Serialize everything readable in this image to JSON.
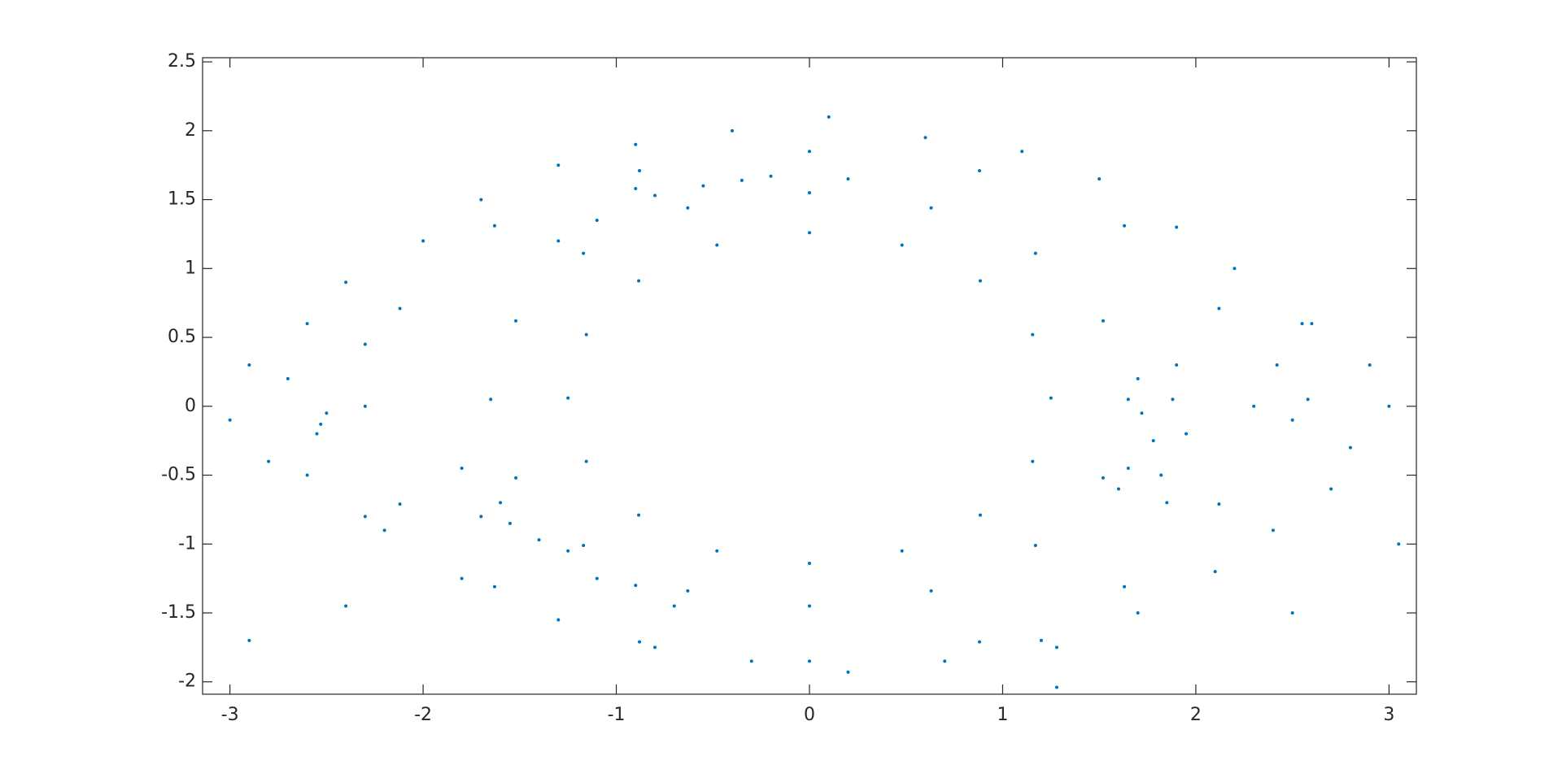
{
  "chart_data": {
    "type": "scatter",
    "color": "#0072bd",
    "xlim": [
      -3.1416,
      3.1416
    ],
    "ylim": [
      -2.09,
      2.53
    ],
    "xticks": [
      -3,
      -2,
      -1,
      0,
      1,
      2,
      3
    ],
    "yticks": [
      -2,
      -1.5,
      -1,
      -0.5,
      0,
      0.5,
      1,
      1.5,
      2,
      2.5
    ],
    "x": [
      1.25,
      1.155,
      0.884,
      0.479,
      0,
      -0.479,
      -0.884,
      -1.155,
      -1.25,
      -1.155,
      -0.884,
      -0.479,
      0,
      0.479,
      0.884,
      1.155,
      1.65,
      1.52,
      1.17,
      0.63,
      0,
      -0.63,
      -1.17,
      -1.52,
      -1.65,
      -1.52,
      -1.17,
      -0.63,
      0,
      0.63,
      1.17,
      1.52,
      2.3,
      2.12,
      1.63,
      0.88,
      0,
      -0.88,
      -1.63,
      -2.12,
      -2.3,
      -2.12,
      -1.63,
      -0.88,
      0,
      0.88,
      1.63,
      2.12,
      1.78,
      1.6,
      1.7,
      1.9,
      1.95,
      1.85,
      1.65,
      1.72,
      1.88,
      1.82,
      -1.4,
      -1.7,
      -1.1,
      -0.9,
      -1.6,
      -1.25,
      -1.55,
      -0.7,
      -1.8,
      -0.55,
      -0.8,
      -0.2,
      -1.1,
      0.2,
      -0.9,
      -0.35,
      -1.3,
      -2.53,
      -2.5,
      -2.55,
      2.5,
      2.42,
      2.58,
      -2.9,
      -3,
      -2.7,
      -2.8,
      -2.6,
      -2.4,
      -2.2,
      -2,
      -1.7,
      -1.3,
      -0.9,
      -0.4,
      0.1,
      0.6,
      1.1,
      1.5,
      1.9,
      2.2,
      2.6,
      2.9,
      3,
      2.8,
      2.7,
      2.4,
      2.1,
      1.7,
      1.2,
      0.7,
      0.2,
      -0.3,
      -0.8,
      -1.3,
      -1.8,
      -2.3,
      -2.6,
      1.28,
      1.28,
      -2.9,
      -2.4,
      2.5,
      3.05,
      -2.3,
      2.55
    ],
    "y": [
      0.06,
      0.52,
      0.91,
      1.17,
      1.26,
      1.17,
      0.91,
      0.52,
      0.06,
      -0.4,
      -0.79,
      -1.05,
      -1.14,
      -1.05,
      -0.79,
      -0.4,
      0.05,
      0.62,
      1.11,
      1.44,
      1.55,
      1.44,
      1.11,
      0.62,
      0.05,
      -0.52,
      -1.01,
      -1.34,
      -1.45,
      -1.34,
      -1.01,
      -0.52,
      0,
      0.71,
      1.31,
      1.71,
      1.85,
      1.71,
      1.31,
      0.71,
      0,
      -0.71,
      -1.31,
      -1.71,
      -1.85,
      -1.71,
      -1.31,
      -0.71,
      -0.25,
      -0.6,
      0.2,
      0.3,
      -0.2,
      -0.7,
      -0.45,
      -0.05,
      0.05,
      -0.5,
      -0.97,
      -0.8,
      -1.25,
      -1.3,
      -0.7,
      -1.05,
      -0.85,
      -1.45,
      -0.45,
      1.6,
      1.53,
      1.67,
      1.35,
      1.65,
      1.58,
      1.64,
      1.2,
      -0.13,
      -0.05,
      -0.2,
      -0.1,
      0.3,
      0.05,
      0.3,
      -0.1,
      0.2,
      -0.4,
      0.6,
      0.9,
      -0.9,
      1.2,
      1.5,
      1.75,
      1.9,
      2,
      2.1,
      1.95,
      1.85,
      1.65,
      1.3,
      1,
      0.6,
      0.3,
      0,
      -0.3,
      -0.6,
      -0.9,
      -1.2,
      -1.5,
      -1.7,
      -1.85,
      -1.93,
      -1.85,
      -1.75,
      -1.55,
      -1.25,
      -0.8,
      -0.5,
      -2.04,
      -1.75,
      -1.7,
      -1.45,
      -1.5,
      -1,
      0.45,
      0.6
    ]
  }
}
